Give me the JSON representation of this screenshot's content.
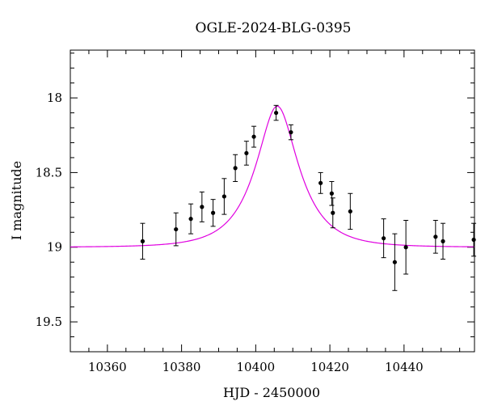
{
  "chart_data": {
    "type": "scatter",
    "title": "OGLE-2024-BLG-0395",
    "xlabel": "HJD - 2450000",
    "ylabel": "I magnitude",
    "xlim": [
      10350,
      10459
    ],
    "ylim": [
      19.7,
      17.68
    ],
    "y_inverted": true,
    "grid": false,
    "x_ticks": [
      10360,
      10380,
      10400,
      10420,
      10440
    ],
    "x_tick_labels": [
      "10360",
      "10380",
      "10400",
      "10420",
      "10440"
    ],
    "y_ticks": [
      18.0,
      18.5,
      19.0,
      19.5
    ],
    "y_tick_labels": [
      "18",
      "18.5",
      "19",
      "19.5"
    ],
    "series": [
      {
        "type": "scatter_errorbar",
        "x": [
          10369.5,
          10378.5,
          10382.5,
          10385.5,
          10388.5,
          10391.5,
          10394.5,
          10397.5,
          10399.5,
          10405.5,
          10409.5,
          10417.5,
          10420.5,
          10420.8,
          10425.5,
          10434.5,
          10437.5,
          10440.5,
          10448.5,
          10450.5,
          10458.8
        ],
        "y": [
          18.96,
          18.88,
          18.81,
          18.73,
          18.77,
          18.66,
          18.47,
          18.37,
          18.26,
          18.1,
          18.23,
          18.57,
          18.64,
          18.77,
          18.76,
          18.94,
          19.1,
          19.0,
          18.93,
          18.96,
          18.95
        ],
        "yerr": [
          0.12,
          0.11,
          0.1,
          0.1,
          0.09,
          0.12,
          0.09,
          0.08,
          0.07,
          0.05,
          0.05,
          0.07,
          0.08,
          0.1,
          0.12,
          0.13,
          0.19,
          0.18,
          0.11,
          0.12,
          0.11
        ],
        "color": "#000000"
      },
      {
        "type": "line",
        "model": "paczynski",
        "t0": 10405.8,
        "tE": 10.5,
        "u0": 0.45,
        "baseline_mag": 19.0,
        "color": "#e000e0"
      }
    ]
  }
}
